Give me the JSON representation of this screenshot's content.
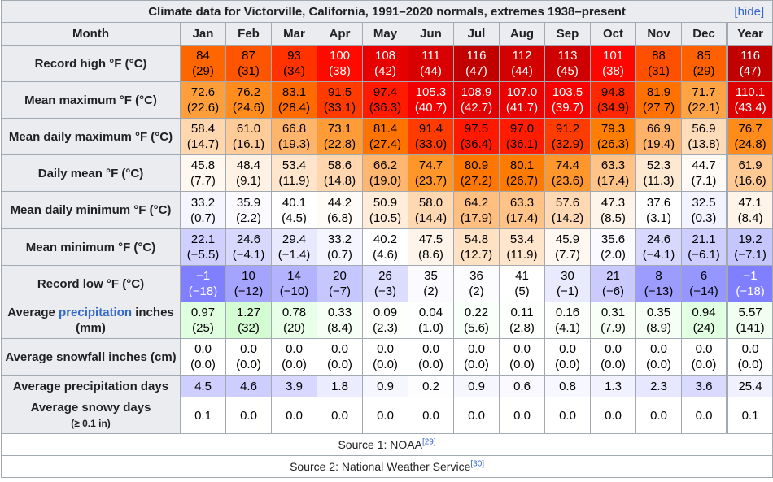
{
  "title": "Climate data for Victorville, California, 1991–2020 normals, extremes 1938–present",
  "hide_label": "[hide]",
  "header": {
    "month": "Month",
    "columns": [
      "Jan",
      "Feb",
      "Mar",
      "Apr",
      "May",
      "Jun",
      "Jul",
      "Aug",
      "Sep",
      "Oct",
      "Nov",
      "Dec",
      "Year"
    ]
  },
  "rows": [
    {
      "label": "Record high °F (°C)",
      "cells": [
        {
          "f": "84",
          "c": "(29)",
          "bg": "#ff6600",
          "fg": "#000000"
        },
        {
          "f": "87",
          "c": "(31)",
          "bg": "#ff5500",
          "fg": "#000000"
        },
        {
          "f": "93",
          "c": "(34)",
          "bg": "#ff3200",
          "fg": "#000000"
        },
        {
          "f": "100",
          "c": "(38)",
          "bg": "#ff0a00",
          "fg": "#ffffff"
        },
        {
          "f": "108",
          "c": "(42)",
          "bg": "#e70000",
          "fg": "#ffffff"
        },
        {
          "f": "111",
          "c": "(44)",
          "bg": "#d80000",
          "fg": "#ffffff"
        },
        {
          "f": "116",
          "c": "(47)",
          "bg": "#c10000",
          "fg": "#ffffff"
        },
        {
          "f": "112",
          "c": "(44)",
          "bg": "#d30000",
          "fg": "#ffffff"
        },
        {
          "f": "113",
          "c": "(45)",
          "bg": "#cf0000",
          "fg": "#ffffff"
        },
        {
          "f": "101",
          "c": "(38)",
          "bg": "#ff0500",
          "fg": "#ffffff"
        },
        {
          "f": "88",
          "c": "(31)",
          "bg": "#ff5000",
          "fg": "#000000"
        },
        {
          "f": "85",
          "c": "(29)",
          "bg": "#ff6100",
          "fg": "#000000"
        },
        {
          "f": "116",
          "c": "(47)",
          "bg": "#c10000",
          "fg": "#ffffff"
        }
      ]
    },
    {
      "label": "Mean maximum °F (°C)",
      "cells": [
        {
          "f": "72.6",
          "c": "(22.6)",
          "bg": "#ff9f3c",
          "fg": "#000000"
        },
        {
          "f": "76.2",
          "c": "(24.6)",
          "bg": "#ff8c1c",
          "fg": "#000000"
        },
        {
          "f": "83.1",
          "c": "(28.4)",
          "bg": "#ff6b00",
          "fg": "#000000"
        },
        {
          "f": "91.5",
          "c": "(33.1)",
          "bg": "#ff3b00",
          "fg": "#000000"
        },
        {
          "f": "97.4",
          "c": "(36.3)",
          "bg": "#ff1a00",
          "fg": "#000000"
        },
        {
          "f": "105.3",
          "c": "(40.7)",
          "bg": "#f10000",
          "fg": "#ffffff"
        },
        {
          "f": "108.9",
          "c": "(42.7)",
          "bg": "#e30000",
          "fg": "#ffffff"
        },
        {
          "f": "107.0",
          "c": "(41.7)",
          "bg": "#ea0000",
          "fg": "#ffffff"
        },
        {
          "f": "103.5",
          "c": "(39.7)",
          "bg": "#f80000",
          "fg": "#ffffff"
        },
        {
          "f": "94.8",
          "c": "(34.9)",
          "bg": "#ff2800",
          "fg": "#000000"
        },
        {
          "f": "81.9",
          "c": "(27.7)",
          "bg": "#ff7100",
          "fg": "#000000"
        },
        {
          "f": "71.7",
          "c": "(22.1)",
          "bg": "#ffa445",
          "fg": "#000000"
        },
        {
          "f": "110.1",
          "c": "(43.4)",
          "bg": "#de0000",
          "fg": "#ffffff"
        }
      ]
    },
    {
      "label": "Mean daily maximum °F (°C)",
      "cells": [
        {
          "f": "58.4",
          "c": "(14.7)",
          "bg": "#ffd7ae",
          "fg": "#000000"
        },
        {
          "f": "61.0",
          "c": "(16.1)",
          "bg": "#ffcc99",
          "fg": "#000000"
        },
        {
          "f": "66.8",
          "c": "(19.3)",
          "bg": "#ffb46b",
          "fg": "#000000"
        },
        {
          "f": "73.1",
          "c": "(22.8)",
          "bg": "#ff9c37",
          "fg": "#000000"
        },
        {
          "f": "81.4",
          "c": "(27.4)",
          "bg": "#ff7300",
          "fg": "#000000"
        },
        {
          "f": "91.4",
          "c": "(33.0)",
          "bg": "#ff3b00",
          "fg": "#000000"
        },
        {
          "f": "97.5",
          "c": "(36.4)",
          "bg": "#ff1900",
          "fg": "#000000"
        },
        {
          "f": "97.0",
          "c": "(36.1)",
          "bg": "#ff1c00",
          "fg": "#000000"
        },
        {
          "f": "91.2",
          "c": "(32.9)",
          "bg": "#ff3c00",
          "fg": "#000000"
        },
        {
          "f": "79.3",
          "c": "(26.3)",
          "bg": "#ff7e00",
          "fg": "#000000"
        },
        {
          "f": "66.9",
          "c": "(19.4)",
          "bg": "#ffb36a",
          "fg": "#000000"
        },
        {
          "f": "56.9",
          "c": "(13.8)",
          "bg": "#ffdcb9",
          "fg": "#000000"
        },
        {
          "f": "76.7",
          "c": "(24.8)",
          "bg": "#ff8b1a",
          "fg": "#000000"
        }
      ]
    },
    {
      "label": "Daily mean °F (°C)",
      "cells": [
        {
          "f": "45.8",
          "c": "(7.7)",
          "bg": "#fff8f1",
          "fg": "#000000"
        },
        {
          "f": "48.4",
          "c": "(9.1)",
          "bg": "#fff1e3",
          "fg": "#000000"
        },
        {
          "f": "53.4",
          "c": "(11.9)",
          "bg": "#ffe5cb",
          "fg": "#000000"
        },
        {
          "f": "58.6",
          "c": "(14.8)",
          "bg": "#ffd6ad",
          "fg": "#000000"
        },
        {
          "f": "66.2",
          "c": "(19.0)",
          "bg": "#ffb670",
          "fg": "#000000"
        },
        {
          "f": "74.7",
          "c": "(23.7)",
          "bg": "#ff962a",
          "fg": "#000000"
        },
        {
          "f": "80.9",
          "c": "(27.2)",
          "bg": "#ff7600",
          "fg": "#000000"
        },
        {
          "f": "80.1",
          "c": "(26.7)",
          "bg": "#ff7a00",
          "fg": "#000000"
        },
        {
          "f": "74.4",
          "c": "(23.6)",
          "bg": "#ff972d",
          "fg": "#000000"
        },
        {
          "f": "63.3",
          "c": "(17.4)",
          "bg": "#ffc388",
          "fg": "#000000"
        },
        {
          "f": "52.3",
          "c": "(11.3)",
          "bg": "#ffe8d1",
          "fg": "#000000"
        },
        {
          "f": "44.7",
          "c": "(7.1)",
          "bg": "#fffaf6",
          "fg": "#000000"
        },
        {
          "f": "61.9",
          "c": "(16.6)",
          "bg": "#ffc993",
          "fg": "#000000"
        }
      ]
    },
    {
      "label": "Mean daily minimum °F (°C)",
      "cells": [
        {
          "f": "33.2",
          "c": "(0.7)",
          "bg": "#f5f5ff",
          "fg": "#000000"
        },
        {
          "f": "35.9",
          "c": "(2.2)",
          "bg": "#fbfbff",
          "fg": "#000000"
        },
        {
          "f": "40.1",
          "c": "(4.5)",
          "bg": "#ffffff",
          "fg": "#000000"
        },
        {
          "f": "44.2",
          "c": "(6.8)",
          "bg": "#fffbf7",
          "fg": "#000000"
        },
        {
          "f": "50.9",
          "c": "(10.5)",
          "bg": "#ffecd9",
          "fg": "#000000"
        },
        {
          "f": "58.0",
          "c": "(14.4)",
          "bg": "#ffd8b1",
          "fg": "#000000"
        },
        {
          "f": "64.2",
          "c": "(17.9)",
          "bg": "#ffbf81",
          "fg": "#000000"
        },
        {
          "f": "63.3",
          "c": "(17.4)",
          "bg": "#ffc388",
          "fg": "#000000"
        },
        {
          "f": "57.6",
          "c": "(14.2)",
          "bg": "#ffd9b3",
          "fg": "#000000"
        },
        {
          "f": "47.3",
          "c": "(8.5)",
          "bg": "#fff4e9",
          "fg": "#000000"
        },
        {
          "f": "37.6",
          "c": "(3.1)",
          "bg": "#ffffff",
          "fg": "#000000"
        },
        {
          "f": "32.5",
          "c": "(0.3)",
          "bg": "#f3f3ff",
          "fg": "#000000"
        },
        {
          "f": "47.1",
          "c": "(8.4)",
          "bg": "#fff4ea",
          "fg": "#000000"
        }
      ]
    },
    {
      "label": "Mean minimum °F (°C)",
      "cells": [
        {
          "f": "22.1",
          "c": "(−5.5)",
          "bg": "#d0d0ff",
          "fg": "#000000"
        },
        {
          "f": "24.6",
          "c": "(−4.1)",
          "bg": "#d8d8ff",
          "fg": "#000000"
        },
        {
          "f": "29.4",
          "c": "(−1.4)",
          "bg": "#e8e8ff",
          "fg": "#000000"
        },
        {
          "f": "33.2",
          "c": "(0.7)",
          "bg": "#f5f5ff",
          "fg": "#000000"
        },
        {
          "f": "40.2",
          "c": "(4.6)",
          "bg": "#ffffff",
          "fg": "#000000"
        },
        {
          "f": "47.5",
          "c": "(8.6)",
          "bg": "#fff4e9",
          "fg": "#000000"
        },
        {
          "f": "54.8",
          "c": "(12.7)",
          "bg": "#ffe1c4",
          "fg": "#000000"
        },
        {
          "f": "53.4",
          "c": "(11.9)",
          "bg": "#ffe5cb",
          "fg": "#000000"
        },
        {
          "f": "45.9",
          "c": "(7.7)",
          "bg": "#fff8f1",
          "fg": "#000000"
        },
        {
          "f": "35.6",
          "c": "(2.0)",
          "bg": "#fafaff",
          "fg": "#000000"
        },
        {
          "f": "24.6",
          "c": "(−4.1)",
          "bg": "#d8d8ff",
          "fg": "#000000"
        },
        {
          "f": "21.1",
          "c": "(−6.1)",
          "bg": "#cdcdff",
          "fg": "#000000"
        },
        {
          "f": "19.2",
          "c": "(−7.1)",
          "bg": "#c6c6ff",
          "fg": "#000000"
        }
      ]
    },
    {
      "label": "Record low °F (°C)",
      "cells": [
        {
          "f": "−1",
          "c": "(−18)",
          "bg": "#7f7fff",
          "fg": "#ffffff"
        },
        {
          "f": "10",
          "c": "(−12)",
          "bg": "#a4a4ff",
          "fg": "#000000"
        },
        {
          "f": "14",
          "c": "(−10)",
          "bg": "#b2b2ff",
          "fg": "#000000"
        },
        {
          "f": "20",
          "c": "(−7)",
          "bg": "#c7c7ff",
          "fg": "#000000"
        },
        {
          "f": "26",
          "c": "(−3)",
          "bg": "#dcdcff",
          "fg": "#000000"
        },
        {
          "f": "35",
          "c": "(2)",
          "bg": "#fafaff",
          "fg": "#000000"
        },
        {
          "f": "36",
          "c": "(2)",
          "bg": "#fcfcff",
          "fg": "#000000"
        },
        {
          "f": "41",
          "c": "(5)",
          "bg": "#ffffff",
          "fg": "#000000"
        },
        {
          "f": "30",
          "c": "(−1)",
          "bg": "#eaeaff",
          "fg": "#000000"
        },
        {
          "f": "21",
          "c": "(−6)",
          "bg": "#cacaff",
          "fg": "#000000"
        },
        {
          "f": "8",
          "c": "(−13)",
          "bg": "#9c9cff",
          "fg": "#000000"
        },
        {
          "f": "6",
          "c": "(−14)",
          "bg": "#9696ff",
          "fg": "#000000"
        },
        {
          "f": "−1",
          "c": "(−18)",
          "bg": "#7f7fff",
          "fg": "#ffffff"
        }
      ]
    },
    {
      "label_pre": "Average ",
      "label_link": "precipitation",
      "label_post": " inches (mm)",
      "cells": [
        {
          "f": "0.97",
          "c": "(25)",
          "bg": "#e0ffe0",
          "fg": "#000000"
        },
        {
          "f": "1.27",
          "c": "(32)",
          "bg": "#d3fcd3",
          "fg": "#000000"
        },
        {
          "f": "0.78",
          "c": "(20)",
          "bg": "#e8ffe8",
          "fg": "#000000"
        },
        {
          "f": "0.33",
          "c": "(8.4)",
          "bg": "#f6fff6",
          "fg": "#000000"
        },
        {
          "f": "0.09",
          "c": "(2.3)",
          "bg": "#fdfffd",
          "fg": "#000000"
        },
        {
          "f": "0.04",
          "c": "(1.0)",
          "bg": "#feffff",
          "fg": "#000000"
        },
        {
          "f": "0.22",
          "c": "(5.6)",
          "bg": "#f9fff9",
          "fg": "#000000"
        },
        {
          "f": "0.11",
          "c": "(2.8)",
          "bg": "#fcfffc",
          "fg": "#000000"
        },
        {
          "f": "0.16",
          "c": "(4.1)",
          "bg": "#fbfffb",
          "fg": "#000000"
        },
        {
          "f": "0.31",
          "c": "(7.9)",
          "bg": "#f7fff7",
          "fg": "#000000"
        },
        {
          "f": "0.35",
          "c": "(8.9)",
          "bg": "#f6fff6",
          "fg": "#000000"
        },
        {
          "f": "0.94",
          "c": "(24)",
          "bg": "#e1ffe1",
          "fg": "#000000"
        },
        {
          "f": "5.57",
          "c": "(141)",
          "bg": "#f1fff1",
          "fg": "#000000"
        }
      ]
    },
    {
      "label": "Average snowfall inches (cm)",
      "cells": [
        {
          "f": "0.0",
          "c": "(0.0)",
          "bg": "#ffffff",
          "fg": "#000000"
        },
        {
          "f": "0.0",
          "c": "(0.0)",
          "bg": "#ffffff",
          "fg": "#000000"
        },
        {
          "f": "0.0",
          "c": "(0.0)",
          "bg": "#ffffff",
          "fg": "#000000"
        },
        {
          "f": "0.0",
          "c": "(0.0)",
          "bg": "#ffffff",
          "fg": "#000000"
        },
        {
          "f": "0.0",
          "c": "(0.0)",
          "bg": "#ffffff",
          "fg": "#000000"
        },
        {
          "f": "0.0",
          "c": "(0.0)",
          "bg": "#ffffff",
          "fg": "#000000"
        },
        {
          "f": "0.0",
          "c": "(0.0)",
          "bg": "#ffffff",
          "fg": "#000000"
        },
        {
          "f": "0.0",
          "c": "(0.0)",
          "bg": "#ffffff",
          "fg": "#000000"
        },
        {
          "f": "0.0",
          "c": "(0.0)",
          "bg": "#ffffff",
          "fg": "#000000"
        },
        {
          "f": "0.0",
          "c": "(0.0)",
          "bg": "#ffffff",
          "fg": "#000000"
        },
        {
          "f": "0.0",
          "c": "(0.0)",
          "bg": "#ffffff",
          "fg": "#000000"
        },
        {
          "f": "0.0",
          "c": "(0.0)",
          "bg": "#ffffff",
          "fg": "#000000"
        },
        {
          "f": "0.0",
          "c": "(0.0)",
          "bg": "#ffffff",
          "fg": "#000000"
        }
      ]
    },
    {
      "label": "Average precipitation days",
      "cells": [
        {
          "v": "4.5",
          "bg": "#cfcfff",
          "fg": "#000000"
        },
        {
          "v": "4.6",
          "bg": "#cecefe",
          "fg": "#000000"
        },
        {
          "v": "3.9",
          "bg": "#d7d7ff",
          "fg": "#000000"
        },
        {
          "v": "1.8",
          "bg": "#ececff",
          "fg": "#000000"
        },
        {
          "v": "0.9",
          "bg": "#f6f6ff",
          "fg": "#000000"
        },
        {
          "v": "0.2",
          "bg": "#fdfdff",
          "fg": "#000000"
        },
        {
          "v": "0.9",
          "bg": "#f6f6ff",
          "fg": "#000000"
        },
        {
          "v": "0.6",
          "bg": "#f9f9ff",
          "fg": "#000000"
        },
        {
          "v": "0.8",
          "bg": "#f7f7ff",
          "fg": "#000000"
        },
        {
          "v": "1.3",
          "bg": "#f1f1ff",
          "fg": "#000000"
        },
        {
          "v": "2.3",
          "bg": "#e7e7ff",
          "fg": "#000000"
        },
        {
          "v": "3.6",
          "bg": "#dadaff",
          "fg": "#000000"
        },
        {
          "v": "25.4",
          "bg": "#f0f0ff",
          "fg": "#000000"
        }
      ]
    },
    {
      "label": "Average snowy days",
      "label_small": "(≥ 0.1 in)",
      "cells": [
        {
          "v": "0.1",
          "bg": "#ffffff",
          "fg": "#000000"
        },
        {
          "v": "0.0",
          "bg": "#ffffff",
          "fg": "#000000"
        },
        {
          "v": "0.0",
          "bg": "#ffffff",
          "fg": "#000000"
        },
        {
          "v": "0.0",
          "bg": "#ffffff",
          "fg": "#000000"
        },
        {
          "v": "0.0",
          "bg": "#ffffff",
          "fg": "#000000"
        },
        {
          "v": "0.0",
          "bg": "#ffffff",
          "fg": "#000000"
        },
        {
          "v": "0.0",
          "bg": "#ffffff",
          "fg": "#000000"
        },
        {
          "v": "0.0",
          "bg": "#ffffff",
          "fg": "#000000"
        },
        {
          "v": "0.0",
          "bg": "#ffffff",
          "fg": "#000000"
        },
        {
          "v": "0.0",
          "bg": "#ffffff",
          "fg": "#000000"
        },
        {
          "v": "0.0",
          "bg": "#ffffff",
          "fg": "#000000"
        },
        {
          "v": "0.0",
          "bg": "#ffffff",
          "fg": "#000000"
        },
        {
          "v": "0.1",
          "bg": "#ffffff",
          "fg": "#000000"
        }
      ]
    }
  ],
  "sources": [
    {
      "text": "Source 1: NOAA",
      "ref": "[29]"
    },
    {
      "text": "Source 2: National Weather Service",
      "ref": "[30]"
    }
  ]
}
